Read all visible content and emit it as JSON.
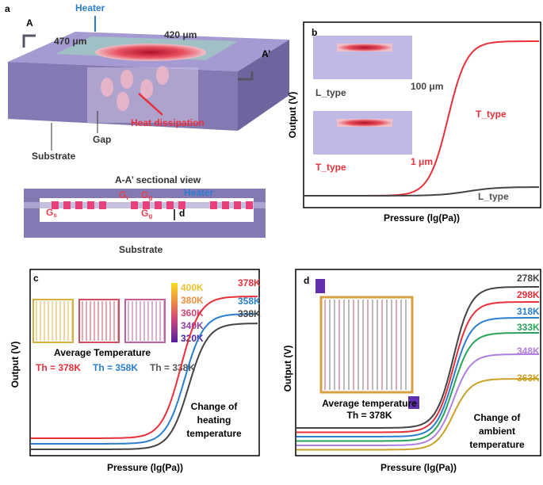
{
  "panel_a": {
    "label": "a",
    "heater": "Heater",
    "section_a": "A",
    "section_a_prime": "A’",
    "width": "470 μm",
    "depth": "420 μm",
    "heat": "Heat dissipation",
    "gap": "Gap",
    "substrate": "Substrate",
    "section": {
      "title": "A-A’ sectional view",
      "gr": {
        "symbol": "G",
        "sub": "r"
      },
      "gg1": {
        "symbol": "G",
        "sub": "g"
      },
      "heater": "Heater",
      "gs": {
        "symbol": "G",
        "sub": "s"
      },
      "gg2": {
        "symbol": "G",
        "sub": "g"
      },
      "d": "d",
      "substrate": "Substrate"
    }
  },
  "panel_b": {
    "label": "b",
    "inset_l": "L_type",
    "inset_l_gap": "100 μm",
    "inset_t": "T_type",
    "inset_t_gap": "1 μm",
    "curve_t": "T_type",
    "curve_l": "L_type",
    "y_label": "Output (V)",
    "x_label": "Pressure (lg(Pa))"
  },
  "panel_c": {
    "label": "c",
    "colorbar": [
      "400K",
      "380K",
      "360K",
      "340K",
      "320K"
    ],
    "avg": "Average Temperature",
    "th": [
      "Th = 378K",
      "Th = 358K",
      "Th = 338K"
    ],
    "curves": [
      "378K",
      "358K",
      "338K"
    ],
    "note": [
      "Change of",
      "heating",
      "temperature"
    ],
    "y_label": "Output (V)",
    "x_label": "Pressure (lg(Pa))"
  },
  "panel_d": {
    "label": "d",
    "avg": "Average temperature",
    "th": "Th = 378K",
    "curves": [
      "278K",
      "298K",
      "318K",
      "333K",
      "348K",
      "363K"
    ],
    "note": [
      "Change of",
      "ambient",
      "temperature"
    ],
    "y_label": "Output (V)",
    "x_label": "Pressure (lg(Pa))"
  }
}
